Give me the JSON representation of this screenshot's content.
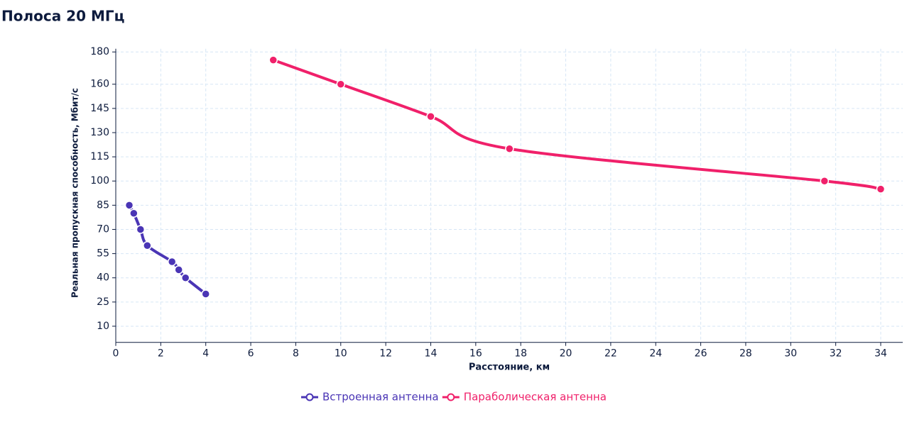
{
  "chart_data": {
    "type": "line",
    "title": "Полоса 20 МГц",
    "x_label": "Расстояние, км",
    "y_label": "Реальная пропускная способность, Мбит/с",
    "xlim": [
      0,
      35
    ],
    "xticks": [
      0,
      2,
      4,
      6,
      8,
      10,
      12,
      14,
      16,
      18,
      20,
      22,
      24,
      26,
      28,
      30,
      32,
      34
    ],
    "ylim": [
      0,
      182
    ],
    "yticks": [
      10,
      25,
      40,
      55,
      70,
      85,
      100,
      115,
      130,
      145,
      160,
      180
    ],
    "grid": true,
    "legend": "bottom",
    "series": [
      {
        "name": "Встроенная антенна",
        "color": "#4a35b5",
        "x": [
          0.6,
          0.8,
          1.1,
          1.4,
          2.5,
          2.8,
          3.1,
          4
        ],
        "values": [
          85,
          80,
          70,
          60,
          50,
          45,
          40,
          30
        ]
      },
      {
        "name": "Параболическая антенна",
        "color": "#f0206a",
        "x": [
          7,
          10,
          14,
          17.5,
          31.5,
          34
        ],
        "values": [
          175,
          160,
          140,
          120,
          100,
          95
        ]
      }
    ]
  }
}
